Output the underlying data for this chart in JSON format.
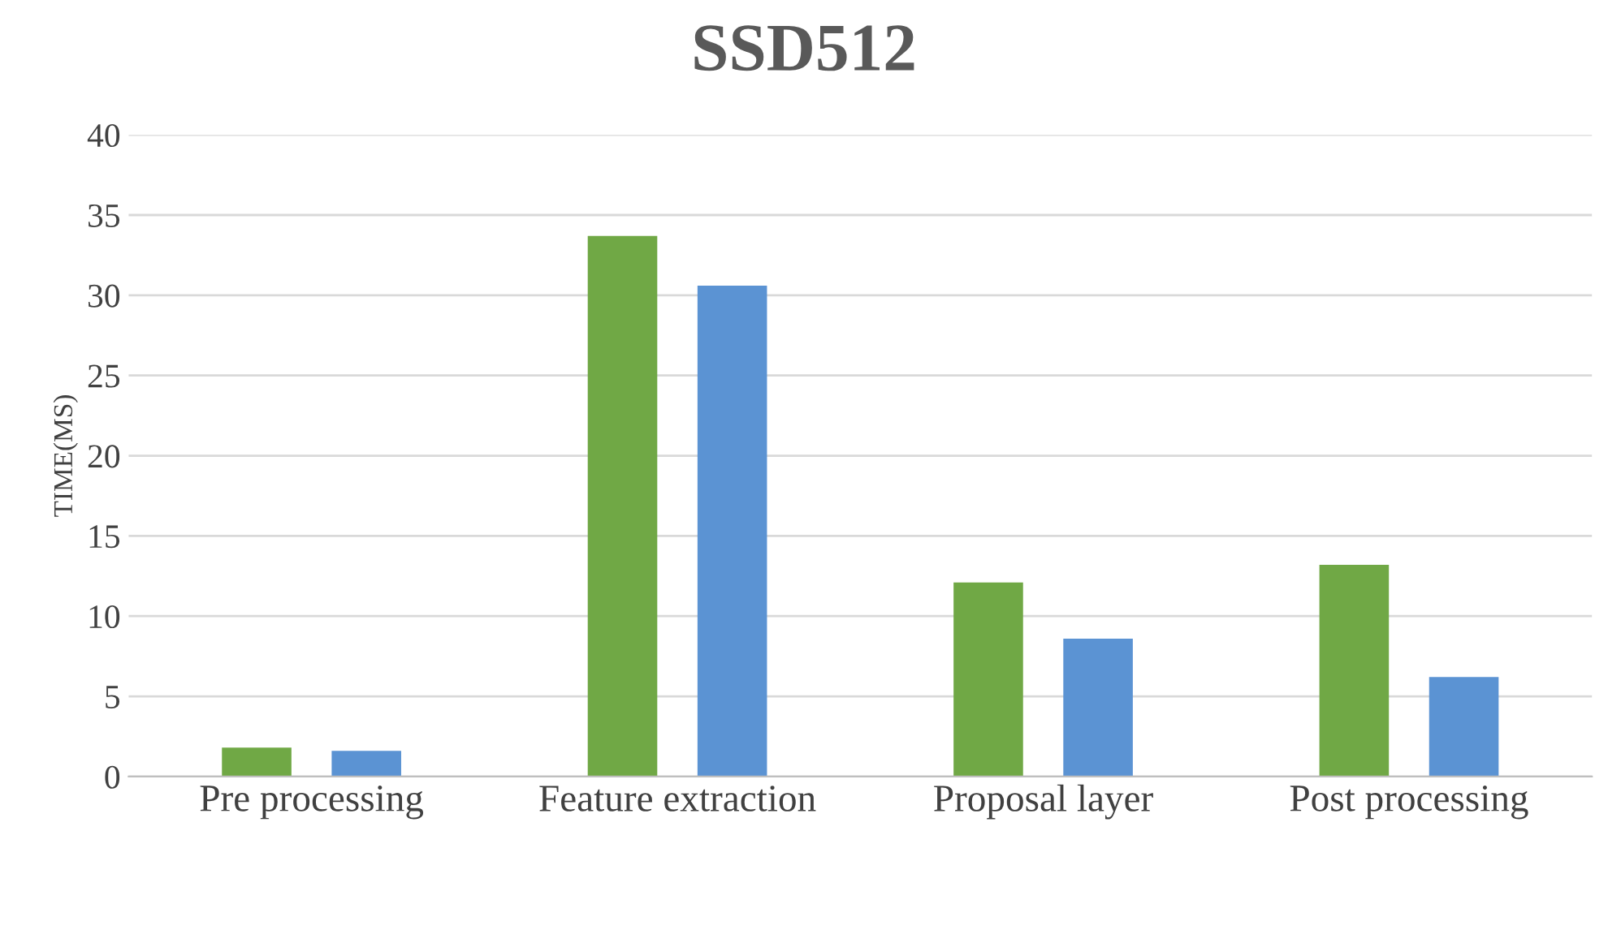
{
  "chart_data": {
    "type": "bar",
    "title": "SSD512",
    "ylabel": "TIME(MS)",
    "categories": [
      "Pre processing",
      "Feature extraction",
      "Proposal layer",
      "Post processing"
    ],
    "series": [
      {
        "color": "#70a845",
        "values": [
          1.8,
          33.7,
          12.1,
          13.2
        ]
      },
      {
        "color": "#5b93d3",
        "values": [
          1.6,
          30.6,
          8.6,
          6.2
        ]
      }
    ],
    "ylim": [
      0,
      40
    ],
    "yticks": [
      0,
      5,
      10,
      15,
      20,
      25,
      30,
      35,
      40
    ],
    "grid": "y"
  }
}
